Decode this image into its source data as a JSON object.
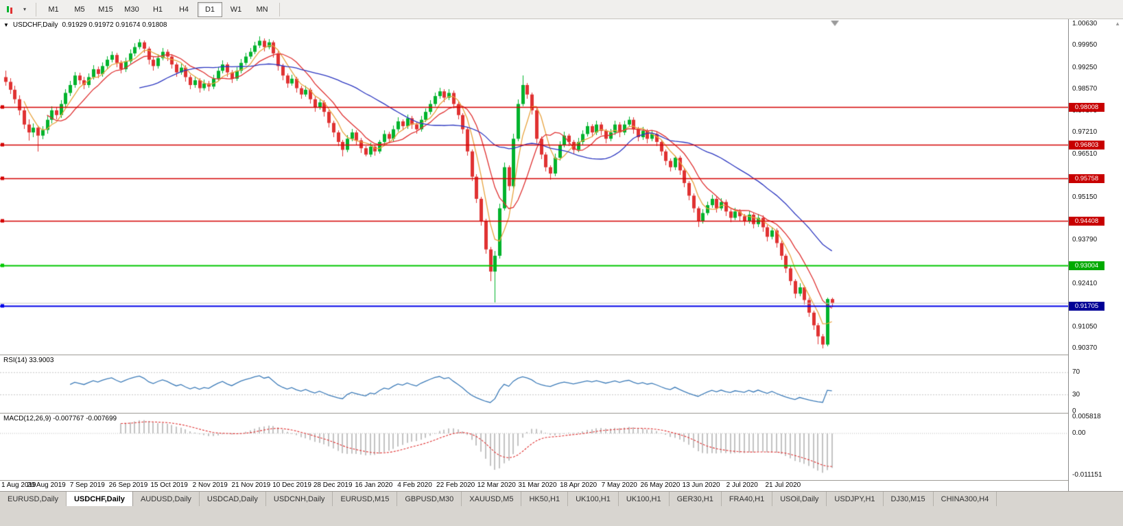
{
  "toolbar": {
    "timeframes": [
      "M1",
      "M5",
      "M15",
      "M30",
      "H1",
      "H4",
      "D1",
      "W1",
      "MN"
    ],
    "active_timeframe": "D1"
  },
  "chart": {
    "title_symbol": "USDCHF,Daily",
    "title_ohlc": "0.91929 0.91972 0.91674 0.91808"
  },
  "chart_data": {
    "type": "candlestick",
    "symbol": "USDCHF",
    "period": "Daily",
    "open": 0.91929,
    "high": 0.91972,
    "low": 0.91674,
    "close": 0.91808,
    "colors": {
      "up": "#00B32C",
      "down": "#E03232",
      "ma_fast": "#E8A33D",
      "ma_mid": "#E03030",
      "ma_slow": "#2A35C0",
      "rsi": "#3A7AB8",
      "macd_hist": "#C2C2C2",
      "macd_signal": "#E03030",
      "bid_line": "#C8C8C8"
    },
    "moving_averages": [
      {
        "period": 5,
        "color": "#E8A33D"
      },
      {
        "period": 10,
        "color": "#E03030"
      },
      {
        "period": 30,
        "color": "#2A35C0"
      }
    ],
    "hlines": [
      {
        "value": 0.98008,
        "label": "0.98008",
        "line": "#D40000",
        "badge": "#C80000"
      },
      {
        "value": 0.96803,
        "label": "0.96803",
        "line": "#D40000",
        "badge": "#C80000"
      },
      {
        "value": 0.95758,
        "label": "0.95758",
        "line": "#D40000",
        "badge": "#C80000"
      },
      {
        "value": 0.94408,
        "label": "0.94408",
        "line": "#D40000",
        "badge": "#C80000"
      },
      {
        "value": 0.93004,
        "label": "0.93004",
        "line": "#00C800",
        "badge": "#00AA00"
      },
      {
        "value": 0.91705,
        "label": "0.91705",
        "line": "#0000E8",
        "badge": "#000096"
      }
    ],
    "bid_line": 0.91808,
    "y_labels": [
      "1.00630",
      "0.99950",
      "0.99250",
      "0.98570",
      "0.97870",
      "0.97210",
      "0.96510",
      "0.95150",
      "0.93790",
      "0.92410",
      "0.91050",
      "0.90370"
    ],
    "x_labels": [
      "1 Aug 2019",
      "20 Aug 2019",
      "7 Sep 2019",
      "26 Sep 2019",
      "15 Oct 2019",
      "2 Nov 2019",
      "21 Nov 2019",
      "10 Dec 2019",
      "28 Dec 2019",
      "16 Jan 2020",
      "4 Feb 2020",
      "22 Feb 2020",
      "12 Mar 2020",
      "31 Mar 2020",
      "18 Apr 2020",
      "7 May 2020",
      "26 May 2020",
      "13 Jun 2020",
      "2 Jul 2020",
      "21 Jul 2020"
    ],
    "indicators": {
      "rsi": {
        "label": "RSI(14) 33.9003",
        "period": 14,
        "value": 33.9003,
        "levels": [
          70,
          30
        ],
        "y_labels": [
          "70",
          "30",
          "0"
        ]
      },
      "macd": {
        "label": "MACD(12,26,9) -0.007767 -0.007699",
        "fast": 12,
        "slow": 26,
        "signal": 9,
        "main_value": -0.007767,
        "signal_value": -0.007699,
        "y_labels": [
          "0.005818",
          "0.00",
          "-0.011151"
        ]
      }
    },
    "candles": [
      [
        0.9895,
        0.9916,
        0.9868,
        0.988
      ],
      [
        0.988,
        0.9892,
        0.9841,
        0.9855
      ],
      [
        0.9855,
        0.9868,
        0.9812,
        0.9825
      ],
      [
        0.9825,
        0.9838,
        0.9775,
        0.979
      ],
      [
        0.979,
        0.9801,
        0.9731,
        0.9745
      ],
      [
        0.9745,
        0.9762,
        0.9695,
        0.972
      ],
      [
        0.972,
        0.9748,
        0.9706,
        0.9735
      ],
      [
        0.9735,
        0.9742,
        0.9659,
        0.971
      ],
      [
        0.971,
        0.974,
        0.9698,
        0.9728
      ],
      [
        0.9728,
        0.9773,
        0.9716,
        0.976
      ],
      [
        0.976,
        0.9802,
        0.9748,
        0.979
      ],
      [
        0.979,
        0.9798,
        0.9762,
        0.9775
      ],
      [
        0.9775,
        0.9822,
        0.9766,
        0.981
      ],
      [
        0.981,
        0.9856,
        0.9801,
        0.9845
      ],
      [
        0.9845,
        0.9882,
        0.9836,
        0.987
      ],
      [
        0.987,
        0.9912,
        0.9861,
        0.99
      ],
      [
        0.99,
        0.9908,
        0.9872,
        0.9885
      ],
      [
        0.9885,
        0.9896,
        0.9856,
        0.987
      ],
      [
        0.987,
        0.9907,
        0.9862,
        0.9895
      ],
      [
        0.9895,
        0.9932,
        0.9887,
        0.992
      ],
      [
        0.992,
        0.9928,
        0.9891,
        0.9905
      ],
      [
        0.9905,
        0.9942,
        0.9897,
        0.993
      ],
      [
        0.993,
        0.9962,
        0.9922,
        0.995
      ],
      [
        0.995,
        0.9977,
        0.9942,
        0.9965
      ],
      [
        0.9965,
        0.9972,
        0.9926,
        0.994
      ],
      [
        0.994,
        0.9948,
        0.9906,
        0.992
      ],
      [
        0.992,
        0.9957,
        0.9912,
        0.9945
      ],
      [
        0.9945,
        0.9982,
        0.9937,
        0.997
      ],
      [
        0.997,
        1.0002,
        0.9962,
        0.999
      ],
      [
        0.999,
        1.0015,
        0.9982,
        1.0005
      ],
      [
        1.0005,
        1.0012,
        0.9971,
        0.9985
      ],
      [
        0.9985,
        0.9992,
        0.9936,
        0.995
      ],
      [
        0.995,
        0.9958,
        0.9916,
        0.993
      ],
      [
        0.993,
        0.9967,
        0.9922,
        0.9955
      ],
      [
        0.9955,
        0.9987,
        0.9947,
        0.9975
      ],
      [
        0.9975,
        0.9982,
        0.9946,
        0.996
      ],
      [
        0.996,
        0.9968,
        0.9921,
        0.9935
      ],
      [
        0.9935,
        0.9942,
        0.9896,
        0.991
      ],
      [
        0.991,
        0.9937,
        0.9902,
        0.9925
      ],
      [
        0.9925,
        0.9932,
        0.9881,
        0.9895
      ],
      [
        0.9895,
        0.9902,
        0.9856,
        0.987
      ],
      [
        0.987,
        0.9897,
        0.9862,
        0.9885
      ],
      [
        0.9885,
        0.9892,
        0.9846,
        0.986
      ],
      [
        0.986,
        0.9887,
        0.9852,
        0.9875
      ],
      [
        0.9875,
        0.9882,
        0.9851,
        0.9865
      ],
      [
        0.9865,
        0.9902,
        0.9857,
        0.989
      ],
      [
        0.989,
        0.9927,
        0.9882,
        0.9915
      ],
      [
        0.9915,
        0.9947,
        0.9907,
        0.9935
      ],
      [
        0.9935,
        0.9942,
        0.9896,
        0.991
      ],
      [
        0.991,
        0.9917,
        0.9876,
        0.989
      ],
      [
        0.989,
        0.9927,
        0.9882,
        0.9915
      ],
      [
        0.9915,
        0.9952,
        0.9907,
        0.994
      ],
      [
        0.994,
        0.9972,
        0.9932,
        0.996
      ],
      [
        0.996,
        0.9987,
        0.9952,
        0.9975
      ],
      [
        0.9975,
        1.0007,
        0.9967,
        0.9995
      ],
      [
        0.9995,
        1.0023,
        0.9987,
        1.001
      ],
      [
        1.001,
        1.0017,
        0.9976,
        0.999
      ],
      [
        0.999,
        1.0016,
        0.9982,
        1.0005
      ],
      [
        1.0005,
        1.0012,
        0.9956,
        0.997
      ],
      [
        0.997,
        0.9977,
        0.9916,
        0.993
      ],
      [
        0.993,
        0.9937,
        0.9886,
        0.99
      ],
      [
        0.99,
        0.9907,
        0.9861,
        0.9875
      ],
      [
        0.9875,
        0.9902,
        0.9867,
        0.989
      ],
      [
        0.989,
        0.9897,
        0.9846,
        0.986
      ],
      [
        0.986,
        0.9867,
        0.9826,
        0.984
      ],
      [
        0.984,
        0.9867,
        0.9832,
        0.9855
      ],
      [
        0.9855,
        0.9862,
        0.9811,
        0.9825
      ],
      [
        0.9825,
        0.9832,
        0.9786,
        0.98
      ],
      [
        0.98,
        0.9827,
        0.9792,
        0.9815
      ],
      [
        0.9815,
        0.9822,
        0.9771,
        0.9785
      ],
      [
        0.9785,
        0.9792,
        0.9736,
        0.975
      ],
      [
        0.975,
        0.9757,
        0.9706,
        0.972
      ],
      [
        0.972,
        0.9727,
        0.9676,
        0.969
      ],
      [
        0.969,
        0.9697,
        0.9645,
        0.9665
      ],
      [
        0.9665,
        0.9712,
        0.9657,
        0.97
      ],
      [
        0.97,
        0.9732,
        0.9692,
        0.972
      ],
      [
        0.972,
        0.9727,
        0.9681,
        0.9695
      ],
      [
        0.9695,
        0.9702,
        0.9656,
        0.967
      ],
      [
        0.967,
        0.9677,
        0.9644,
        0.965
      ],
      [
        0.965,
        0.9687,
        0.9642,
        0.9675
      ],
      [
        0.9675,
        0.9682,
        0.9646,
        0.966
      ],
      [
        0.966,
        0.9697,
        0.9652,
        0.969
      ],
      [
        0.969,
        0.9727,
        0.9682,
        0.9715
      ],
      [
        0.9715,
        0.9722,
        0.9686,
        0.97
      ],
      [
        0.97,
        0.9742,
        0.9692,
        0.973
      ],
      [
        0.973,
        0.9767,
        0.9722,
        0.9755
      ],
      [
        0.9755,
        0.9762,
        0.9726,
        0.974
      ],
      [
        0.974,
        0.9777,
        0.9732,
        0.9765
      ],
      [
        0.9765,
        0.9772,
        0.9731,
        0.9745
      ],
      [
        0.9745,
        0.9752,
        0.9716,
        0.973
      ],
      [
        0.973,
        0.9772,
        0.9722,
        0.976
      ],
      [
        0.976,
        0.9797,
        0.9752,
        0.9785
      ],
      [
        0.9785,
        0.9822,
        0.9777,
        0.981
      ],
      [
        0.981,
        0.9847,
        0.9802,
        0.9835
      ],
      [
        0.9835,
        0.9862,
        0.9827,
        0.985
      ],
      [
        0.985,
        0.9857,
        0.9816,
        0.983
      ],
      [
        0.983,
        0.9857,
        0.9822,
        0.9845
      ],
      [
        0.9845,
        0.9852,
        0.9796,
        0.981
      ],
      [
        0.981,
        0.9817,
        0.9761,
        0.9775
      ],
      [
        0.9775,
        0.9782,
        0.9716,
        0.973
      ],
      [
        0.973,
        0.9737,
        0.9646,
        0.966
      ],
      [
        0.966,
        0.9667,
        0.9566,
        0.958
      ],
      [
        0.958,
        0.9587,
        0.9496,
        0.951
      ],
      [
        0.951,
        0.9517,
        0.9426,
        0.944
      ],
      [
        0.944,
        0.9447,
        0.9336,
        0.935
      ],
      [
        0.935,
        0.9357,
        0.925,
        0.928
      ],
      [
        0.928,
        0.9345,
        0.9182,
        0.933
      ],
      [
        0.933,
        0.9495,
        0.9322,
        0.948
      ],
      [
        0.948,
        0.9625,
        0.9472,
        0.961
      ],
      [
        0.961,
        0.9617,
        0.9536,
        0.955
      ],
      [
        0.955,
        0.9715,
        0.9542,
        0.97
      ],
      [
        0.97,
        0.9825,
        0.9692,
        0.981
      ],
      [
        0.981,
        0.9901,
        0.9802,
        0.987
      ],
      [
        0.987,
        0.9877,
        0.9826,
        0.984
      ],
      [
        0.984,
        0.9847,
        0.9776,
        0.979
      ],
      [
        0.979,
        0.9797,
        0.9686,
        0.97
      ],
      [
        0.97,
        0.9707,
        0.9636,
        0.965
      ],
      [
        0.965,
        0.9657,
        0.9596,
        0.961
      ],
      [
        0.961,
        0.9617,
        0.957,
        0.959
      ],
      [
        0.959,
        0.9652,
        0.9582,
        0.964
      ],
      [
        0.964,
        0.9692,
        0.9632,
        0.968
      ],
      [
        0.968,
        0.9722,
        0.9672,
        0.971
      ],
      [
        0.971,
        0.9717,
        0.9676,
        0.969
      ],
      [
        0.969,
        0.9697,
        0.9651,
        0.9665
      ],
      [
        0.9665,
        0.9702,
        0.9657,
        0.969
      ],
      [
        0.969,
        0.9727,
        0.9682,
        0.9715
      ],
      [
        0.9715,
        0.9752,
        0.9707,
        0.974
      ],
      [
        0.974,
        0.9747,
        0.9706,
        0.972
      ],
      [
        0.972,
        0.9757,
        0.9712,
        0.9745
      ],
      [
        0.9745,
        0.9752,
        0.9711,
        0.9725
      ],
      [
        0.9725,
        0.9732,
        0.9686,
        0.97
      ],
      [
        0.97,
        0.9732,
        0.9692,
        0.972
      ],
      [
        0.972,
        0.9757,
        0.9712,
        0.9745
      ],
      [
        0.9745,
        0.9752,
        0.9706,
        0.972
      ],
      [
        0.972,
        0.9757,
        0.9712,
        0.9745
      ],
      [
        0.9745,
        0.977,
        0.9737,
        0.976
      ],
      [
        0.976,
        0.9767,
        0.9716,
        0.973
      ],
      [
        0.973,
        0.9737,
        0.9691,
        0.9705
      ],
      [
        0.9705,
        0.9737,
        0.9697,
        0.9725
      ],
      [
        0.9725,
        0.9732,
        0.9686,
        0.97
      ],
      [
        0.97,
        0.9727,
        0.9692,
        0.9715
      ],
      [
        0.9715,
        0.9722,
        0.9676,
        0.969
      ],
      [
        0.969,
        0.9697,
        0.9646,
        0.966
      ],
      [
        0.966,
        0.9667,
        0.9616,
        0.963
      ],
      [
        0.963,
        0.9637,
        0.9596,
        0.961
      ],
      [
        0.961,
        0.9647,
        0.9602,
        0.964
      ],
      [
        0.964,
        0.9647,
        0.9586,
        0.96
      ],
      [
        0.96,
        0.9607,
        0.9546,
        0.956
      ],
      [
        0.956,
        0.9567,
        0.9506,
        0.952
      ],
      [
        0.952,
        0.9527,
        0.9466,
        0.948
      ],
      [
        0.948,
        0.9487,
        0.942,
        0.944
      ],
      [
        0.944,
        0.9477,
        0.9432,
        0.9465
      ],
      [
        0.9465,
        0.9502,
        0.9457,
        0.949
      ],
      [
        0.949,
        0.9522,
        0.9482,
        0.951
      ],
      [
        0.951,
        0.9517,
        0.9466,
        0.948
      ],
      [
        0.948,
        0.9512,
        0.9472,
        0.95
      ],
      [
        0.95,
        0.9507,
        0.9456,
        0.947
      ],
      [
        0.947,
        0.9477,
        0.9436,
        0.945
      ],
      [
        0.945,
        0.9482,
        0.9442,
        0.947
      ],
      [
        0.947,
        0.9477,
        0.9441,
        0.9455
      ],
      [
        0.9455,
        0.9462,
        0.9426,
        0.944
      ],
      [
        0.944,
        0.9472,
        0.9432,
        0.946
      ],
      [
        0.946,
        0.9467,
        0.9416,
        0.943
      ],
      [
        0.943,
        0.9462,
        0.9422,
        0.945
      ],
      [
        0.945,
        0.9457,
        0.9406,
        0.942
      ],
      [
        0.942,
        0.9427,
        0.9376,
        0.939
      ],
      [
        0.939,
        0.9422,
        0.9382,
        0.941
      ],
      [
        0.941,
        0.9417,
        0.9356,
        0.937
      ],
      [
        0.937,
        0.9377,
        0.9316,
        0.933
      ],
      [
        0.933,
        0.9337,
        0.9276,
        0.929
      ],
      [
        0.929,
        0.9297,
        0.9236,
        0.925
      ],
      [
        0.925,
        0.9257,
        0.9196,
        0.921
      ],
      [
        0.921,
        0.9242,
        0.9202,
        0.923
      ],
      [
        0.923,
        0.9237,
        0.9176,
        0.919
      ],
      [
        0.919,
        0.9197,
        0.9136,
        0.915
      ],
      [
        0.915,
        0.9157,
        0.9096,
        0.911
      ],
      [
        0.911,
        0.9117,
        0.905,
        0.9075
      ],
      [
        0.9075,
        0.9082,
        0.9037,
        0.9049
      ],
      [
        0.9049,
        0.9198,
        0.9043,
        0.9193
      ],
      [
        0.91929,
        0.91972,
        0.91674,
        0.91808
      ]
    ]
  },
  "tabs": {
    "active_index": 1,
    "items": [
      "EURUSD,Daily",
      "USDCHF,Daily",
      "AUDUSD,Daily",
      "USDCAD,Daily",
      "USDCNH,Daily",
      "EURUSD,M15",
      "GBPUSD,M30",
      "XAUUSD,M5",
      "HK50,H1",
      "UK100,H1",
      "UK100,H1",
      "GER30,H1",
      "FRA40,H1",
      "USOil,Daily",
      "USDJPY,H1",
      "DJ30,M15",
      "CHINA300,H4"
    ]
  }
}
